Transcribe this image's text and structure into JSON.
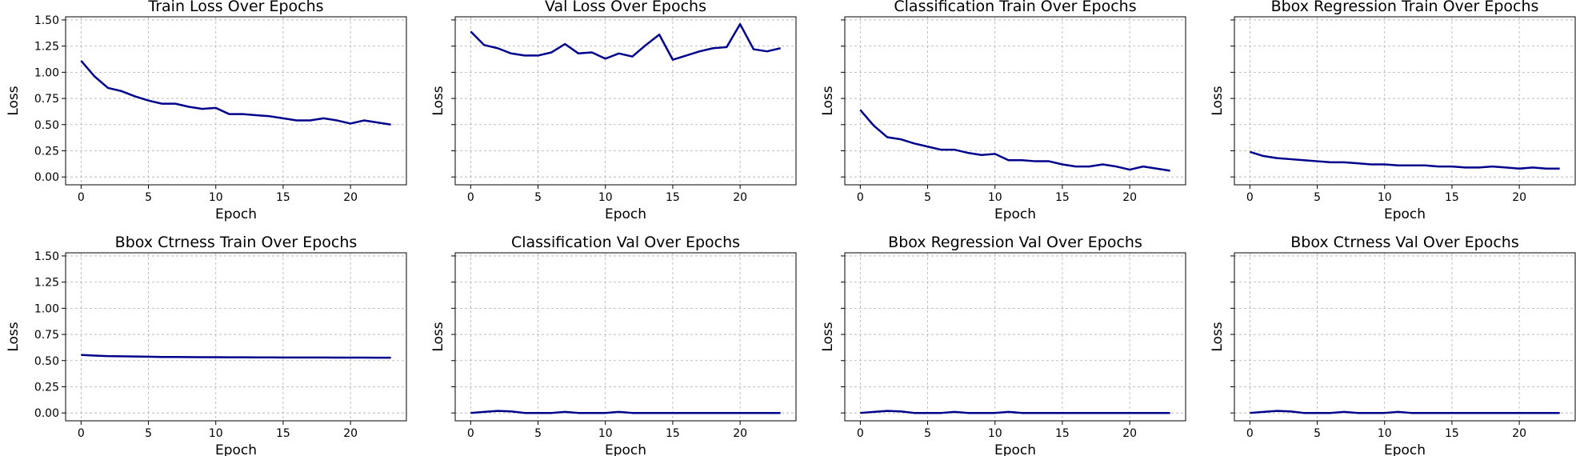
{
  "figure": {
    "line_color": "#00008b"
  },
  "chart_data": [
    {
      "type": "line",
      "title": "Train Loss Over Epochs",
      "xlabel": "Epoch",
      "ylabel": "Loss",
      "xlim": [
        -1.15,
        24.15
      ],
      "ylim": [
        -0.075,
        1.53
      ],
      "xticks": [
        0,
        5,
        10,
        15,
        20
      ],
      "yticks": [
        "0.00",
        "0.25",
        "0.50",
        "0.75",
        "1.00",
        "1.25",
        "1.50"
      ],
      "show_ytick_labels": true,
      "grid": true,
      "x": [
        0,
        1,
        2,
        3,
        4,
        5,
        6,
        7,
        8,
        9,
        10,
        11,
        12,
        13,
        14,
        15,
        16,
        17,
        18,
        19,
        20,
        21,
        22,
        23
      ],
      "series": [
        {
          "values": [
            1.11,
            0.96,
            0.85,
            0.82,
            0.77,
            0.73,
            0.7,
            0.7,
            0.67,
            0.65,
            0.66,
            0.6,
            0.6,
            0.59,
            0.58,
            0.56,
            0.54,
            0.54,
            0.56,
            0.54,
            0.51,
            0.54,
            0.52,
            0.5
          ]
        }
      ]
    },
    {
      "type": "line",
      "title": "Val Loss Over Epochs",
      "xlabel": "Epoch",
      "ylabel": "Loss",
      "xlim": [
        -1.15,
        24.15
      ],
      "ylim": [
        -0.075,
        1.53
      ],
      "xticks": [
        0,
        5,
        10,
        15,
        20
      ],
      "yticks": [
        "0.00",
        "0.25",
        "0.50",
        "0.75",
        "1.00",
        "1.25",
        "1.50"
      ],
      "show_ytick_labels": false,
      "grid": true,
      "x": [
        0,
        1,
        2,
        3,
        4,
        5,
        6,
        7,
        8,
        9,
        10,
        11,
        12,
        13,
        14,
        15,
        16,
        17,
        18,
        19,
        20,
        21,
        22,
        23
      ],
      "series": [
        {
          "values": [
            1.39,
            1.26,
            1.23,
            1.18,
            1.16,
            1.16,
            1.19,
            1.27,
            1.18,
            1.19,
            1.13,
            1.18,
            1.15,
            1.26,
            1.36,
            1.12,
            1.16,
            1.2,
            1.23,
            1.24,
            1.46,
            1.22,
            1.2,
            1.23
          ]
        }
      ]
    },
    {
      "type": "line",
      "title": "Classification Train Over Epochs",
      "xlabel": "Epoch",
      "ylabel": "Loss",
      "xlim": [
        -1.15,
        24.15
      ],
      "ylim": [
        -0.075,
        1.53
      ],
      "xticks": [
        0,
        5,
        10,
        15,
        20
      ],
      "yticks": [
        "0.00",
        "0.25",
        "0.50",
        "0.75",
        "1.00",
        "1.25",
        "1.50"
      ],
      "show_ytick_labels": false,
      "grid": true,
      "x": [
        0,
        1,
        2,
        3,
        4,
        5,
        6,
        7,
        8,
        9,
        10,
        11,
        12,
        13,
        14,
        15,
        16,
        17,
        18,
        19,
        20,
        21,
        22,
        23
      ],
      "series": [
        {
          "values": [
            0.64,
            0.49,
            0.38,
            0.36,
            0.32,
            0.29,
            0.26,
            0.26,
            0.23,
            0.21,
            0.22,
            0.16,
            0.16,
            0.15,
            0.15,
            0.12,
            0.1,
            0.1,
            0.12,
            0.1,
            0.07,
            0.1,
            0.08,
            0.06
          ]
        }
      ]
    },
    {
      "type": "line",
      "title": "Bbox Regression Train Over Epochs",
      "xlabel": "Epoch",
      "ylabel": "Loss",
      "xlim": [
        -1.15,
        24.15
      ],
      "ylim": [
        -0.075,
        1.53
      ],
      "xticks": [
        0,
        5,
        10,
        15,
        20
      ],
      "yticks": [
        "0.00",
        "0.25",
        "0.50",
        "0.75",
        "1.00",
        "1.25",
        "1.50"
      ],
      "show_ytick_labels": false,
      "grid": true,
      "x": [
        0,
        1,
        2,
        3,
        4,
        5,
        6,
        7,
        8,
        9,
        10,
        11,
        12,
        13,
        14,
        15,
        16,
        17,
        18,
        19,
        20,
        21,
        22,
        23
      ],
      "series": [
        {
          "values": [
            0.24,
            0.2,
            0.18,
            0.17,
            0.16,
            0.15,
            0.14,
            0.14,
            0.13,
            0.12,
            0.12,
            0.11,
            0.11,
            0.11,
            0.1,
            0.1,
            0.09,
            0.09,
            0.1,
            0.09,
            0.08,
            0.09,
            0.08,
            0.08
          ]
        }
      ]
    },
    {
      "type": "line",
      "title": "Bbox Ctrness Train Over Epochs",
      "xlabel": "Epoch",
      "ylabel": "Loss",
      "xlim": [
        -1.15,
        24.15
      ],
      "ylim": [
        -0.075,
        1.53
      ],
      "xticks": [
        0,
        5,
        10,
        15,
        20
      ],
      "yticks": [
        "0.00",
        "0.25",
        "0.50",
        "0.75",
        "1.00",
        "1.25",
        "1.50"
      ],
      "show_ytick_labels": true,
      "grid": true,
      "x": [
        0,
        1,
        2,
        3,
        4,
        5,
        6,
        7,
        8,
        9,
        10,
        11,
        12,
        13,
        14,
        15,
        16,
        17,
        18,
        19,
        20,
        21,
        22,
        23
      ],
      "series": [
        {
          "values": [
            0.555,
            0.548,
            0.543,
            0.541,
            0.539,
            0.537,
            0.535,
            0.535,
            0.534,
            0.533,
            0.533,
            0.532,
            0.532,
            0.531,
            0.531,
            0.53,
            0.53,
            0.53,
            0.53,
            0.529,
            0.529,
            0.529,
            0.528,
            0.528
          ]
        }
      ]
    },
    {
      "type": "line",
      "title": "Classification Val Over Epochs",
      "xlabel": "Epoch",
      "ylabel": "Loss",
      "xlim": [
        -1.15,
        24.15
      ],
      "ylim": [
        -0.075,
        1.53
      ],
      "xticks": [
        0,
        5,
        10,
        15,
        20
      ],
      "yticks": [
        "0.00",
        "0.25",
        "0.50",
        "0.75",
        "1.00",
        "1.25",
        "1.50"
      ],
      "show_ytick_labels": false,
      "grid": true,
      "x": [
        0,
        1,
        2,
        3,
        4,
        5,
        6,
        7,
        8,
        9,
        10,
        11,
        12,
        13,
        14,
        15,
        16,
        17,
        18,
        19,
        20,
        21,
        22,
        23
      ],
      "series": [
        {
          "values": [
            0.0,
            0.01,
            0.02,
            0.015,
            0.0,
            0.0,
            0.0,
            0.01,
            0.0,
            0.0,
            0.0,
            0.01,
            0.0,
            0.0,
            0.0,
            0.0,
            0.0,
            0.0,
            0.0,
            0.0,
            0.0,
            0.0,
            0.0,
            0.0
          ]
        }
      ]
    },
    {
      "type": "line",
      "title": "Bbox Regression Val Over Epochs",
      "xlabel": "Epoch",
      "ylabel": "Loss",
      "xlim": [
        -1.15,
        24.15
      ],
      "ylim": [
        -0.075,
        1.53
      ],
      "xticks": [
        0,
        5,
        10,
        15,
        20
      ],
      "yticks": [
        "0.00",
        "0.25",
        "0.50",
        "0.75",
        "1.00",
        "1.25",
        "1.50"
      ],
      "show_ytick_labels": false,
      "grid": true,
      "x": [
        0,
        1,
        2,
        3,
        4,
        5,
        6,
        7,
        8,
        9,
        10,
        11,
        12,
        13,
        14,
        15,
        16,
        17,
        18,
        19,
        20,
        21,
        22,
        23
      ],
      "series": [
        {
          "values": [
            0.0,
            0.01,
            0.02,
            0.015,
            0.0,
            0.0,
            0.0,
            0.01,
            0.0,
            0.0,
            0.0,
            0.01,
            0.0,
            0.0,
            0.0,
            0.0,
            0.0,
            0.0,
            0.0,
            0.0,
            0.0,
            0.0,
            0.0,
            0.0
          ]
        }
      ]
    },
    {
      "type": "line",
      "title": "Bbox Ctrness Val Over Epochs",
      "xlabel": "Epoch",
      "ylabel": "Loss",
      "xlim": [
        -1.15,
        24.15
      ],
      "ylim": [
        -0.075,
        1.53
      ],
      "xticks": [
        0,
        5,
        10,
        15,
        20
      ],
      "yticks": [
        "0.00",
        "0.25",
        "0.50",
        "0.75",
        "1.00",
        "1.25",
        "1.50"
      ],
      "show_ytick_labels": false,
      "grid": true,
      "x": [
        0,
        1,
        2,
        3,
        4,
        5,
        6,
        7,
        8,
        9,
        10,
        11,
        12,
        13,
        14,
        15,
        16,
        17,
        18,
        19,
        20,
        21,
        22,
        23
      ],
      "series": [
        {
          "values": [
            0.0,
            0.01,
            0.02,
            0.015,
            0.0,
            0.0,
            0.0,
            0.01,
            0.0,
            0.0,
            0.0,
            0.01,
            0.0,
            0.0,
            0.0,
            0.0,
            0.0,
            0.0,
            0.0,
            0.0,
            0.0,
            0.0,
            0.0,
            0.0
          ]
        }
      ]
    }
  ]
}
